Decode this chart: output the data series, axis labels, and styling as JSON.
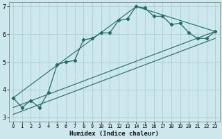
{
  "xlabel": "Humidex (Indice chaleur)",
  "bg_color": "#cce8ec",
  "grid_color": "#aacdd4",
  "line_color": "#1e6e64",
  "xlim": [
    -0.5,
    23.5
  ],
  "ylim": [
    2.85,
    7.15
  ],
  "yticks": [
    3,
    4,
    5,
    6,
    7
  ],
  "xticks": [
    0,
    1,
    2,
    3,
    4,
    5,
    6,
    7,
    8,
    9,
    10,
    11,
    12,
    13,
    14,
    15,
    16,
    17,
    18,
    19,
    20,
    21,
    22,
    23
  ],
  "main_x": [
    0,
    1,
    2,
    3,
    4,
    5,
    6,
    7,
    8,
    9,
    10,
    11,
    12,
    13,
    14,
    15,
    16,
    17,
    18,
    19,
    20,
    21,
    22,
    23
  ],
  "main_y": [
    3.7,
    3.35,
    3.6,
    3.35,
    3.9,
    4.9,
    5.0,
    5.05,
    5.8,
    5.85,
    6.05,
    6.05,
    6.5,
    6.55,
    7.0,
    6.95,
    6.65,
    6.65,
    6.35,
    6.4,
    6.05,
    5.85,
    5.85,
    6.1
  ],
  "line1_x": [
    0,
    14,
    23
  ],
  "line1_y": [
    3.7,
    7.0,
    6.1
  ],
  "line2_x": [
    0,
    23
  ],
  "line2_y": [
    3.35,
    6.1
  ],
  "line3_x": [
    0,
    23
  ],
  "line3_y": [
    3.1,
    5.85
  ]
}
